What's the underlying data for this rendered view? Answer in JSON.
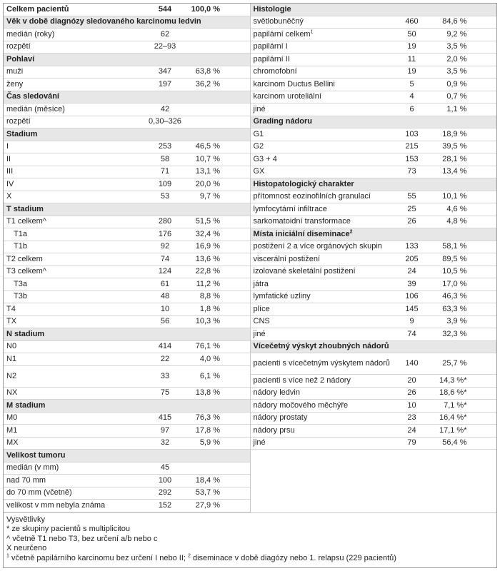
{
  "left": [
    {
      "type": "total",
      "label": "Celkem pacientů",
      "n": "544",
      "pct": "100,0 %"
    },
    {
      "type": "section",
      "label": "Věk v době diagnózy sledovaného karcinomu ledvin"
    },
    {
      "label": "medián (roky)",
      "n": "62",
      "pct": ""
    },
    {
      "label": "rozpětí",
      "n": "22–93",
      "pct": ""
    },
    {
      "type": "section",
      "label": "Pohlaví"
    },
    {
      "label": "muži",
      "n": "347",
      "pct": "63,8 %"
    },
    {
      "label": "ženy",
      "n": "197",
      "pct": "36,2 %"
    },
    {
      "type": "section",
      "label": "Čas sledování"
    },
    {
      "label": "medián (měsíce)",
      "n": "42",
      "pct": ""
    },
    {
      "label": "rozpětí",
      "n": "0,30–326",
      "pct": ""
    },
    {
      "type": "section",
      "label": "Stadium"
    },
    {
      "label": "I",
      "n": "253",
      "pct": "46,5 %"
    },
    {
      "label": "II",
      "n": "58",
      "pct": "10,7 %"
    },
    {
      "label": "III",
      "n": "71",
      "pct": "13,1 %"
    },
    {
      "label": "IV",
      "n": "109",
      "pct": "20,0 %"
    },
    {
      "label": "X",
      "n": "53",
      "pct": "9,7 %"
    },
    {
      "type": "section",
      "label": "T stadium"
    },
    {
      "label": "T1 celkem^",
      "n": "280",
      "pct": "51,5 %"
    },
    {
      "label": "T1a",
      "indent": true,
      "n": "176",
      "pct": "32,4 %"
    },
    {
      "label": "T1b",
      "indent": true,
      "n": "92",
      "pct": "16,9 %"
    },
    {
      "label": "T2 celkem",
      "n": "74",
      "pct": "13,6 %"
    },
    {
      "label": "T3 celkem^",
      "n": "124",
      "pct": "22,8 %"
    },
    {
      "label": "T3a",
      "indent": true,
      "n": "61",
      "pct": "11,2 %"
    },
    {
      "label": "T3b",
      "indent": true,
      "n": "48",
      "pct": "8,8 %"
    },
    {
      "label": "T4",
      "n": "10",
      "pct": "1,8 %"
    },
    {
      "label": "TX",
      "n": "56",
      "pct": "10,3 %"
    },
    {
      "type": "section",
      "label": "N stadium"
    },
    {
      "label": "N0",
      "n": "414",
      "pct": "76,1 %"
    },
    {
      "label": "N1",
      "n": "22",
      "pct": "4,0 %"
    },
    {
      "label": "N2",
      "tall": true,
      "n": "33",
      "pct": "6,1 %"
    },
    {
      "label": "NX",
      "n": "75",
      "pct": "13,8 %"
    },
    {
      "type": "section",
      "label": "M stadium"
    },
    {
      "label": "M0",
      "n": "415",
      "pct": "76,3 %"
    },
    {
      "label": "M1",
      "n": "97",
      "pct": "17,8 %"
    },
    {
      "label": "MX",
      "n": "32",
      "pct": "5,9 %"
    },
    {
      "type": "section",
      "label": "Velikost tumoru"
    },
    {
      "label": "medián (v mm)",
      "n": "45",
      "pct": ""
    },
    {
      "label": "nad 70 mm",
      "n": "100",
      "pct": "18,4 %"
    },
    {
      "label": "do 70 mm (včetně)",
      "n": "292",
      "pct": "53,7 %"
    },
    {
      "label": "velikost v mm nebyla známa",
      "n": "152",
      "pct": "27,9 %"
    }
  ],
  "right": [
    {
      "type": "section",
      "label": "Histologie"
    },
    {
      "label": "světlobuněčný",
      "n": "460",
      "pct": "84,6 %"
    },
    {
      "label": "papilární celkem",
      "sup": "1",
      "n": "50",
      "pct": "9,2 %"
    },
    {
      "label": "papilární I",
      "n": "19",
      "pct": "3,5 %"
    },
    {
      "label": "papilární II",
      "n": "11",
      "pct": "2,0 %"
    },
    {
      "label": "chromofobní",
      "n": "19",
      "pct": "3,5 %"
    },
    {
      "label": "karcinom Ductus Bellini",
      "n": "5",
      "pct": "0,9 %"
    },
    {
      "label": "karcinom uroteliální",
      "n": "4",
      "pct": "0,7 %"
    },
    {
      "label": "jiné",
      "n": "6",
      "pct": "1,1 %"
    },
    {
      "type": "section",
      "label": "Grading nádoru"
    },
    {
      "label": "G1",
      "n": "103",
      "pct": "18,9 %"
    },
    {
      "label": "G2",
      "n": "215",
      "pct": "39,5 %"
    },
    {
      "label": "G3 + 4",
      "n": "153",
      "pct": "28,1 %"
    },
    {
      "label": "GX",
      "n": "73",
      "pct": "13,4 %"
    },
    {
      "type": "section",
      "label": "Histopatologický charakter"
    },
    {
      "label": "přítomnost eozinofilních granulací",
      "n": "55",
      "pct": "10,1 %"
    },
    {
      "label": "lymfocytární infiltrace",
      "n": "25",
      "pct": "4,6 %"
    },
    {
      "label": "sarkomatoidní transformace",
      "n": "26",
      "pct": "4,8 %"
    },
    {
      "type": "section",
      "label": "Místa iniciální diseminace",
      "sup": "2"
    },
    {
      "label": "postižení 2 a více orgánových skupin",
      "n": "133",
      "pct": "58,1 %"
    },
    {
      "label": "viscerální postižení",
      "n": "205",
      "pct": "89,5 %"
    },
    {
      "label": "izolované skeletální postižení",
      "n": "24",
      "pct": "10,5 %"
    },
    {
      "label": "játra",
      "n": "39",
      "pct": "17,0 %"
    },
    {
      "label": "lymfatické uzliny",
      "n": "106",
      "pct": "46,3 %"
    },
    {
      "label": "plíce",
      "n": "145",
      "pct": "63,3 %"
    },
    {
      "label": "CNS",
      "n": "9",
      "pct": "3,9 %"
    },
    {
      "label": "jiné",
      "n": "74",
      "pct": "32,3 %"
    },
    {
      "type": "section",
      "label": "Vícečetný výskyt zhoubných nádorů"
    },
    {
      "label": "pacienti s vícečetným výskytem nádorů",
      "tall": true,
      "n": "140",
      "pct": "25,7 %"
    },
    {
      "label": "pacienti s více než 2 nádory",
      "n": "20",
      "pct": "14,3 %*"
    },
    {
      "label": "nádory ledvin",
      "n": "26",
      "pct": "18,6 %*"
    },
    {
      "label": "nádory močového měchýře",
      "n": "10",
      "pct": "7,1 %*"
    },
    {
      "label": "nádory prostaty",
      "n": "23",
      "pct": "16,4 %*"
    },
    {
      "label": "nádory prsu",
      "n": "24",
      "pct": "17,1 %*"
    },
    {
      "label": "jiné",
      "n": "79",
      "pct": "56,4 %"
    }
  ],
  "notes": {
    "title": "Vysvětlivky",
    "lines": [
      "* ze skupiny pacientů s multiplicitou",
      "^ včetně T1 nebo T3, bez určení a/b nebo c",
      "X neurčeno"
    ],
    "last_sup1": "1",
    "last_text1": " včetně papilárního karcinomu bez určení I nebo II; ",
    "last_sup2": "2",
    "last_text2": " diseminace v době diagózy nebo 1. relapsu (229 pacientů)"
  }
}
